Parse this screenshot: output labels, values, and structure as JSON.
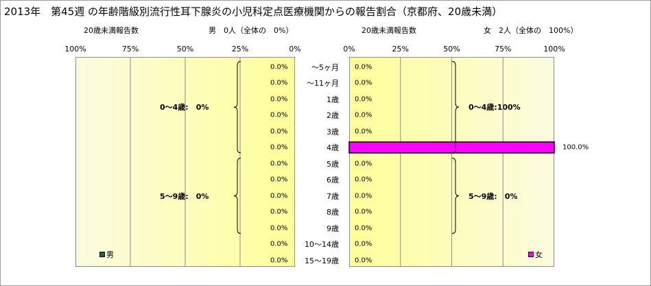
{
  "title": "2013年　第45週 の年齢階級別流行性耳下腺炎の小児科定点医療機関からの報告割合（京都府、20歳未満）",
  "left_header": {
    "label": "20歳未満報告数",
    "count": "男　0人（全体の　0%）"
  },
  "right_header": {
    "label": "20歳未満報告数",
    "count": "女　2人（全体の　100%）"
  },
  "colors": {
    "male": "#1a6b1a",
    "female": "#ff00ff",
    "bg_gradient_edge": "#fbfbe0",
    "bg_gradient_center": "#ffff9a"
  },
  "chart_data": [
    {
      "type": "bar",
      "orientation": "horizontal",
      "direction": "right-to-left",
      "series": [
        {
          "name": "男",
          "values": [
            0,
            0,
            0,
            0,
            0,
            0,
            0,
            0,
            0,
            0,
            0,
            0,
            0
          ]
        }
      ],
      "categories": [
        "～5ヶ月",
        "～11ヶ月",
        "1歳",
        "2歳",
        "3歳",
        "4歳",
        "5歳",
        "6歳",
        "7歳",
        "8歳",
        "9歳",
        "10～14歳",
        "15～19歳"
      ],
      "value_labels": [
        "0.0%",
        "0.0%",
        "0.0%",
        "0.0%",
        "0.0%",
        "0.0%",
        "0.0%",
        "0.0%",
        "0.0%",
        "0.0%",
        "0.0%",
        "0.0%",
        "0.0%"
      ],
      "xlim": [
        0,
        100
      ],
      "tick_labels": [
        "100%",
        "75%",
        "50%",
        "25%",
        "0%"
      ],
      "groups": [
        {
          "label": "0～4歳:　0%",
          "from": 0,
          "to": 5
        },
        {
          "label": "5～9歳:　0%",
          "from": 6,
          "to": 10
        }
      ],
      "legend": "bottom-left"
    },
    {
      "type": "bar",
      "orientation": "horizontal",
      "direction": "left-to-right",
      "series": [
        {
          "name": "女",
          "values": [
            0,
            0,
            0,
            0,
            0,
            100,
            0,
            0,
            0,
            0,
            0,
            0,
            0
          ]
        }
      ],
      "categories": [
        "～5ヶ月",
        "～11ヶ月",
        "1歳",
        "2歳",
        "3歳",
        "4歳",
        "5歳",
        "6歳",
        "7歳",
        "8歳",
        "9歳",
        "10～14歳",
        "15～19歳"
      ],
      "value_labels": [
        "0.0%",
        "0.0%",
        "0.0%",
        "0.0%",
        "0.0%",
        "100.0%",
        "0.0%",
        "0.0%",
        "0.0%",
        "0.0%",
        "0.0%",
        "0.0%",
        "0.0%"
      ],
      "xlim": [
        0,
        100
      ],
      "tick_labels": [
        "0%",
        "25%",
        "50%",
        "75%",
        "100%"
      ],
      "groups": [
        {
          "label": "0～4歳:100%",
          "from": 0,
          "to": 5
        },
        {
          "label": "5～9歳:　0%",
          "from": 6,
          "to": 10
        }
      ],
      "legend": "bottom-right"
    }
  ]
}
